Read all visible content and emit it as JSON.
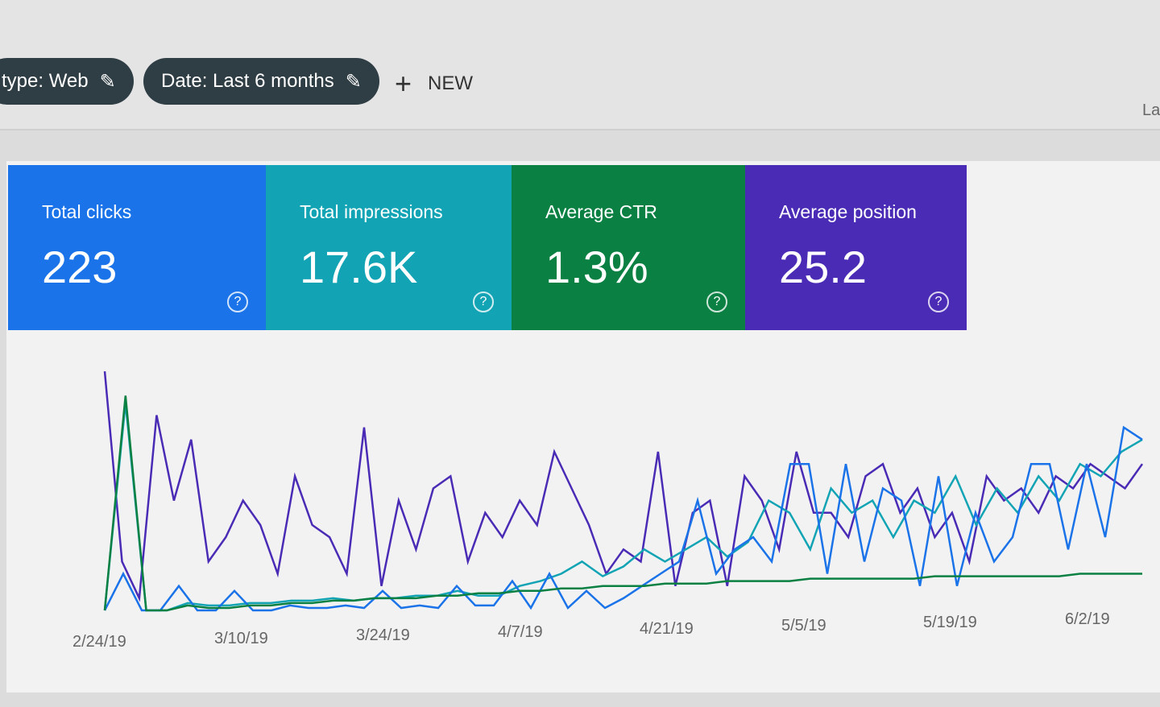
{
  "filters": [
    {
      "label": "type: Web",
      "icon": "pencil-icon"
    },
    {
      "label": "Date: Last 6 months",
      "icon": "pencil-icon"
    }
  ],
  "new_button": {
    "icon": "plus-icon",
    "label": "NEW"
  },
  "cut_off_text": "La",
  "cards": [
    {
      "label": "Total clicks",
      "value": "223",
      "color": "#1a73e8",
      "icon": "help-icon"
    },
    {
      "label": "Total impressions",
      "value": "17.6K",
      "color": "#12a4b4",
      "icon": "help-icon"
    },
    {
      "label": "Average CTR",
      "value": "1.3%",
      "color": "#0b8043",
      "icon": "help-icon"
    },
    {
      "label": "Average position",
      "value": "25.2",
      "color": "#4a2bb5",
      "icon": "help-icon"
    }
  ],
  "chart_data": {
    "type": "line",
    "x_tick_labels": [
      "2/24/19",
      "3/10/19",
      "3/24/19",
      "4/7/19",
      "4/21/19",
      "5/5/19",
      "5/19/19",
      "6/2/19"
    ],
    "grid": false,
    "series": [
      {
        "color": "#4a2bb5",
        "values": [
          98,
          20,
          5,
          80,
          45,
          70,
          20,
          30,
          45,
          35,
          15,
          55,
          35,
          30,
          15,
          75,
          10,
          45,
          25,
          50,
          55,
          20,
          40,
          30,
          45,
          35,
          65,
          50,
          35,
          15,
          25,
          20,
          65,
          10,
          40,
          45,
          10,
          55,
          45,
          25,
          65,
          40,
          40,
          30,
          55,
          60,
          40,
          50,
          30,
          40,
          20,
          55,
          45,
          50,
          40,
          55,
          50,
          60,
          55,
          50,
          60
        ]
      },
      {
        "color": "#12a4b4",
        "values": [
          0,
          85,
          0,
          0,
          3,
          2,
          2,
          3,
          3,
          4,
          4,
          5,
          4,
          5,
          5,
          6,
          6,
          8,
          6,
          6,
          10,
          12,
          15,
          20,
          14,
          18,
          25,
          20,
          25,
          30,
          22,
          28,
          45,
          40,
          25,
          50,
          40,
          45,
          30,
          45,
          40,
          55,
          35,
          50,
          40,
          55,
          45,
          60,
          55,
          65,
          70
        ]
      },
      {
        "color": "#1a73e8",
        "values": [
          0,
          15,
          0,
          0,
          10,
          0,
          0,
          8,
          0,
          0,
          2,
          1,
          1,
          2,
          1,
          8,
          1,
          2,
          1,
          10,
          2,
          2,
          12,
          1,
          15,
          1,
          8,
          1,
          5,
          10,
          15,
          20,
          45,
          15,
          25,
          30,
          20,
          60,
          60,
          15,
          60,
          20,
          50,
          45,
          10,
          55,
          10,
          40,
          20,
          30,
          60,
          60,
          25,
          60,
          30,
          75,
          70
        ]
      },
      {
        "color": "#0b8043",
        "values": [
          0,
          88,
          0,
          0,
          2,
          1,
          1,
          2,
          2,
          3,
          3,
          4,
          4,
          5,
          5,
          5,
          6,
          6,
          7,
          7,
          8,
          8,
          9,
          9,
          10,
          10,
          10,
          11,
          11,
          11,
          12,
          12,
          12,
          12,
          13,
          13,
          13,
          13,
          13,
          13,
          14,
          14,
          14,
          14,
          14,
          14,
          14,
          15,
          15,
          15,
          15
        ]
      }
    ]
  }
}
